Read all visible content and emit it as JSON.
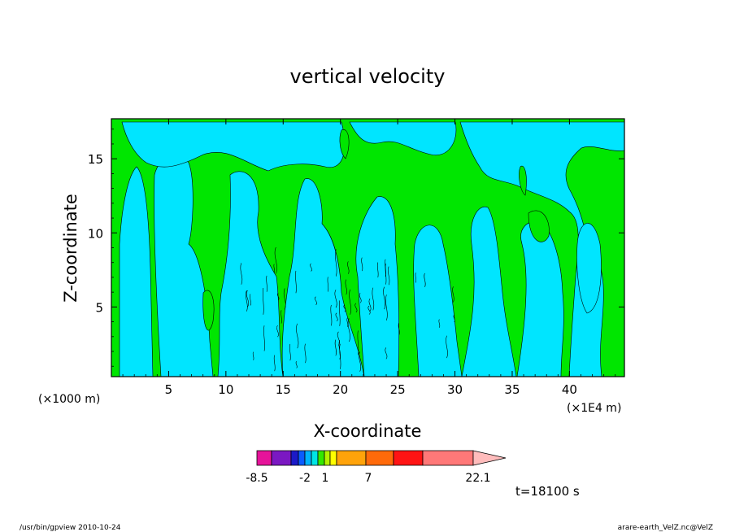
{
  "chart_data": {
    "type": "heatmap",
    "title": "vertical velocity",
    "xlabel": "X-coordinate",
    "ylabel": "Z-coordinate",
    "x_units": "(×1E4 m)",
    "y_units": "(×1000 m)",
    "xlim": [
      0,
      44.8
    ],
    "ylim": [
      0.3,
      17.7
    ],
    "x_ticks": [
      "5",
      "10",
      "15",
      "20",
      "25",
      "30",
      "35",
      "40"
    ],
    "y_ticks": [
      "5",
      "10",
      "15"
    ],
    "colorbar": {
      "colors": [
        "#e6139a",
        "#7b18c2",
        "#1c1ac8",
        "#0b5cff",
        "#00b4ff",
        "#00e5e5",
        "#34e800",
        "#b4f200",
        "#ffff00",
        "#ffa30a",
        "#ff6a0a",
        "#ff1414",
        "#ff7878"
      ],
      "tick_labels": [
        "-8.5",
        "-2",
        "1",
        "7",
        "22.1"
      ]
    },
    "field_colors": {
      "negative": "#00e5ff",
      "positive": "#00e600"
    },
    "time_label": "t=18100 s"
  },
  "footer": {
    "left": "/usr/bin/gpview   2010-10-24",
    "right": "arare-earth_VelZ.nc@VelZ"
  }
}
